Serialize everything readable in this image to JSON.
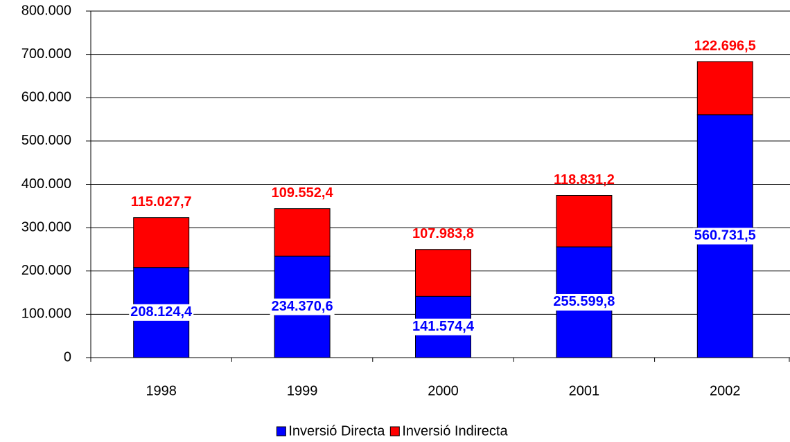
{
  "chart_data": {
    "type": "bar",
    "stacked": true,
    "categories": [
      "1998",
      "1999",
      "2000",
      "2001",
      "2002"
    ],
    "series": [
      {
        "name": "Inversió Directa",
        "color": "#0000ff",
        "values": [
          208124.4,
          234370.6,
          141574.4,
          255599.8,
          560731.5
        ],
        "value_labels": [
          "208.124,4",
          "234.370,6",
          "141.574,4",
          "255.599,8",
          "560.731,5"
        ]
      },
      {
        "name": "Inversió Indirecta",
        "color": "#ff0000",
        "values": [
          115027.7,
          109552.4,
          107983.8,
          118831.2,
          122696.5
        ],
        "value_labels": [
          "115.027,7",
          "109.552,4",
          "107.983,8",
          "118.831,2",
          "122.696,5"
        ]
      }
    ],
    "ylim": [
      0,
      800000
    ],
    "yticks": [
      0,
      {
        "value": 100000,
        "label": "100.000"
      },
      {
        "value": 200000,
        "label": "200.000"
      },
      {
        "value": 300000,
        "label": "300.000"
      },
      {
        "value": 400000,
        "label": "400.000"
      },
      {
        "value": 500000,
        "label": "500.000"
      },
      {
        "value": 600000,
        "label": "600.000"
      },
      {
        "value": 700000,
        "label": "700.000"
      },
      {
        "value": 800000,
        "label": "800.000"
      }
    ],
    "grid": true,
    "legend": "bottom"
  }
}
